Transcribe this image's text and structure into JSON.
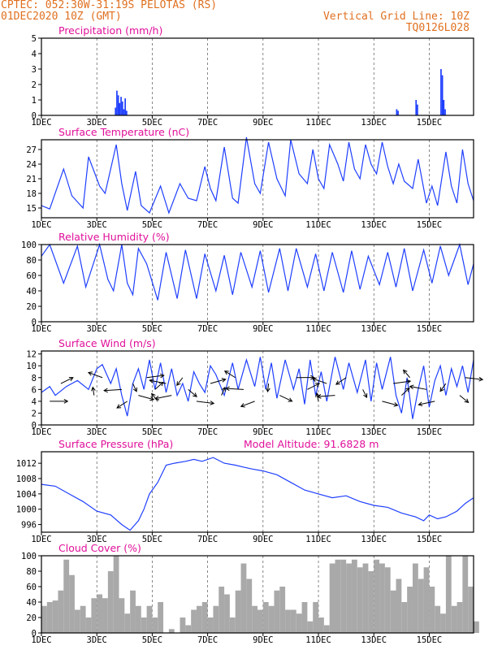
{
  "header": {
    "station": "CPTEC:  052:30W-31:19S  PELOTAS (RS)",
    "date": "01DEC2020 10Z (GMT)",
    "grid_note": "Vertical Grid Line: 10Z",
    "model": "TQ0126L028"
  },
  "colors": {
    "header": "#e07020",
    "title": "#e0109a",
    "series": "#1f3fff",
    "cloud": "#a9a9a9"
  },
  "chart_data": [
    {
      "type": "bar",
      "title": "Precipitation (mm/h)",
      "ylim": [
        0,
        5
      ],
      "yticks": [
        "0",
        "1",
        "2",
        "3",
        "4",
        "5"
      ],
      "xticklabels": [
        "1DEC",
        "3DEC",
        "5DEC",
        "7DEC",
        "9DEC",
        "11DEC",
        "13DEC",
        "15DEC"
      ],
      "x": [
        2.65,
        2.7,
        2.75,
        2.8,
        2.85,
        2.9,
        2.95,
        3.0,
        3.05,
        12.8,
        12.85,
        13.5,
        13.55,
        14.4,
        14.45,
        14.5,
        14.55
      ],
      "values": [
        0.5,
        1.6,
        1.3,
        0.8,
        1.2,
        0.9,
        0.4,
        1.1,
        0.3,
        0.4,
        0.3,
        1.0,
        0.7,
        3.0,
        2.6,
        1.0,
        0.4
      ]
    },
    {
      "type": "line",
      "title": "Surface Temperature (nC)",
      "ylim": [
        13,
        29
      ],
      "yticks": [
        "15",
        "18",
        "21",
        "24",
        "27"
      ],
      "xticklabels": [
        "1DEC",
        "3DEC",
        "5DEC",
        "7DEC",
        "9DEC",
        "11DEC",
        "13DEC",
        "15DEC"
      ],
      "x": [
        0,
        0.3,
        0.8,
        1.1,
        1.5,
        1.7,
        2.1,
        2.3,
        2.7,
        2.9,
        3.1,
        3.4,
        3.6,
        3.9,
        4.3,
        4.6,
        5.0,
        5.3,
        5.6,
        5.9,
        6.1,
        6.3,
        6.6,
        6.9,
        7.1,
        7.4,
        7.7,
        7.9,
        8.2,
        8.5,
        8.8,
        9.0,
        9.3,
        9.6,
        9.8,
        10.0,
        10.2,
        10.4,
        10.7,
        10.9,
        11.1,
        11.3,
        11.5,
        11.7,
        11.9,
        12.1,
        12.3,
        12.5,
        12.7,
        12.9,
        13.1,
        13.4,
        13.6,
        13.9,
        14.1,
        14.3,
        14.6,
        14.8,
        15.0,
        15.2,
        15.4,
        15.6
      ],
      "values": [
        15.5,
        14.8,
        23.0,
        17.5,
        15.0,
        25.5,
        19.5,
        18.0,
        28.0,
        20.0,
        14.5,
        22.5,
        15.5,
        14.0,
        19.5,
        14.0,
        20.0,
        17.0,
        16.5,
        23.5,
        19.0,
        16.5,
        27.5,
        17.0,
        16.0,
        29.5,
        20.0,
        18.0,
        28.5,
        21.0,
        17.5,
        29.0,
        22.0,
        20.0,
        27.0,
        21.0,
        19.0,
        28.0,
        24.0,
        20.5,
        28.5,
        23.0,
        21.0,
        28.0,
        24.0,
        22.0,
        28.5,
        23.5,
        20.0,
        24.0,
        20.5,
        19.0,
        25.0,
        16.0,
        19.5,
        15.5,
        26.5,
        19.5,
        16.0,
        27.0,
        20.0,
        16.5
      ]
    },
    {
      "type": "line",
      "title": "Relative Humidity (%)",
      "ylim": [
        0,
        100
      ],
      "yticks": [
        "0",
        "20",
        "40",
        "60",
        "80",
        "100"
      ],
      "xticklabels": [
        "1DEC",
        "3DEC",
        "5DEC",
        "7DEC",
        "9DEC",
        "11DEC",
        "13DEC",
        "15DEC"
      ],
      "x": [
        0,
        0.3,
        0.8,
        1.3,
        1.6,
        2.1,
        2.4,
        2.6,
        2.9,
        3.1,
        3.3,
        3.5,
        3.8,
        4.2,
        4.5,
        4.9,
        5.2,
        5.6,
        5.9,
        6.3,
        6.6,
        6.9,
        7.2,
        7.6,
        7.9,
        8.2,
        8.6,
        8.9,
        9.2,
        9.6,
        9.9,
        10.2,
        10.5,
        10.9,
        11.2,
        11.5,
        11.8,
        12.2,
        12.5,
        12.8,
        13.1,
        13.4,
        13.8,
        14.1,
        14.4,
        14.7,
        15.1,
        15.4,
        15.6
      ],
      "values": [
        85,
        100,
        50,
        98,
        45,
        100,
        55,
        40,
        100,
        50,
        35,
        95,
        75,
        28,
        90,
        30,
        93,
        30,
        88,
        40,
        86,
        35,
        90,
        45,
        92,
        38,
        95,
        40,
        95,
        45,
        88,
        40,
        90,
        38,
        92,
        42,
        85,
        48,
        90,
        45,
        95,
        40,
        93,
        50,
        98,
        60,
        100,
        48,
        75
      ]
    },
    {
      "type": "line",
      "title": "Surface Wind (m/s)",
      "ylim": [
        0,
        12.5
      ],
      "yticks": [
        "0",
        "2",
        "4",
        "6",
        "8",
        "10",
        "12"
      ],
      "xticklabels": [
        "1DEC",
        "3DEC",
        "5DEC",
        "7DEC",
        "9DEC",
        "11DEC",
        "13DEC",
        "15DEC"
      ],
      "x": [
        0,
        0.3,
        0.5,
        0.9,
        1.3,
        1.7,
        2.0,
        2.2,
        2.5,
        2.7,
        2.9,
        3.1,
        3.3,
        3.5,
        3.7,
        3.9,
        4.1,
        4.3,
        4.5,
        4.7,
        4.9,
        5.1,
        5.3,
        5.5,
        5.7,
        5.9,
        6.1,
        6.3,
        6.6,
        6.9,
        7.1,
        7.4,
        7.7,
        7.9,
        8.1,
        8.3,
        8.5,
        8.8,
        9.1,
        9.3,
        9.5,
        9.7,
        9.9,
        10.1,
        10.3,
        10.6,
        10.9,
        11.1,
        11.4,
        11.7,
        11.9,
        12.1,
        12.3,
        12.6,
        12.8,
        13.0,
        13.2,
        13.4,
        13.6,
        13.8,
        14.0,
        14.2,
        14.4,
        14.6,
        14.8,
        15.0,
        15.2,
        15.4,
        15.6
      ],
      "values": [
        5.5,
        6.5,
        5.0,
        6.5,
        7.5,
        6.0,
        9.5,
        10.2,
        7.0,
        9.5,
        5.0,
        1.5,
        7.0,
        9.5,
        6.0,
        11.0,
        6.0,
        10.5,
        5.5,
        9.5,
        5.0,
        7.0,
        4.0,
        9.0,
        7.0,
        5.5,
        10.0,
        8.5,
        5.0,
        10.5,
        6.0,
        11.0,
        6.5,
        11.5,
        6.0,
        10.5,
        4.5,
        11.0,
        6.0,
        9.5,
        3.5,
        11.0,
        5.0,
        9.0,
        4.0,
        11.5,
        6.0,
        10.5,
        5.5,
        11.0,
        4.0,
        10.5,
        6.0,
        11.5,
        5.0,
        2.0,
        8.0,
        1.0,
        6.0,
        10.0,
        3.0,
        7.5,
        10.0,
        5.0,
        9.5,
        6.5,
        10.0,
        5.5,
        11.0
      ],
      "arrows_x": [
        0.3,
        0.7,
        1.9,
        2.2,
        2.9,
        3.1,
        3.3,
        3.5,
        3.8,
        4.1,
        4.2,
        4.5,
        4.7,
        5.1,
        5.3,
        5.6,
        6.1,
        6.5,
        7.0,
        7.3,
        7.7,
        8.2,
        8.6,
        9.2,
        9.6,
        10.0,
        10.3,
        10.6,
        11.0,
        11.6,
        12.3,
        12.7,
        13.0,
        13.3,
        13.9,
        14.2,
        14.6,
        15.1,
        15.3
      ]
    },
    {
      "type": "line",
      "title": "Surface Pressure (hPa)",
      "annotation": "Model Altitude: 91.6828 m",
      "ylim": [
        994,
        1015
      ],
      "yticks": [
        "996",
        "1000",
        "1004",
        "1008",
        "1012"
      ],
      "xticklabels": [
        "1DEC",
        "3DEC",
        "5DEC",
        "7DEC",
        "9DEC",
        "11DEC",
        "13DEC",
        "15DEC"
      ],
      "x": [
        0,
        0.5,
        1.0,
        1.5,
        2.0,
        2.5,
        2.9,
        3.2,
        3.5,
        3.7,
        3.9,
        4.2,
        4.5,
        4.8,
        5.2,
        5.5,
        5.8,
        6.2,
        6.6,
        7.0,
        7.3,
        7.6,
        8.0,
        8.5,
        9.0,
        9.5,
        10.0,
        10.5,
        11.0,
        11.5,
        12.0,
        12.5,
        13.0,
        13.5,
        13.8,
        14.0,
        14.3,
        14.6,
        15.0,
        15.3,
        15.6
      ],
      "values": [
        1006.5,
        1006.0,
        1004.0,
        1002.0,
        999.5,
        998.5,
        996.0,
        994.5,
        997.0,
        1000.0,
        1004.0,
        1007.0,
        1011.5,
        1012.0,
        1012.5,
        1013.0,
        1012.5,
        1013.5,
        1012.0,
        1011.5,
        1011.0,
        1010.5,
        1010.0,
        1009.0,
        1007.0,
        1005.0,
        1004.0,
        1003.0,
        1003.5,
        1002.0,
        1001.0,
        1000.5,
        999.0,
        998.0,
        997.0,
        998.5,
        997.5,
        998.0,
        999.5,
        1001.5,
        1003.0
      ]
    },
    {
      "type": "bar",
      "title": "Cloud Cover (%)",
      "ylim": [
        0,
        100
      ],
      "yticks": [
        "0",
        "20",
        "40",
        "60",
        "80",
        "100"
      ],
      "xticklabels": [
        "1DEC",
        "3DEC",
        "5DEC",
        "7DEC",
        "9DEC",
        "11DEC",
        "13DEC",
        "15DEC"
      ],
      "x": [
        0.0,
        0.2,
        0.4,
        0.6,
        0.8,
        1.0,
        1.2,
        1.4,
        1.6,
        1.8,
        2.0,
        2.2,
        2.4,
        2.6,
        2.8,
        3.0,
        3.2,
        3.4,
        3.6,
        3.8,
        4.0,
        4.2,
        4.4,
        4.6,
        4.8,
        5.0,
        5.2,
        5.4,
        5.6,
        5.8,
        6.0,
        6.2,
        6.4,
        6.6,
        6.8,
        7.0,
        7.2,
        7.4,
        7.6,
        7.8,
        8.0,
        8.2,
        8.4,
        8.6,
        8.8,
        9.0,
        9.2,
        9.4,
        9.6,
        9.8,
        10.0,
        10.2,
        10.4,
        10.6,
        10.8,
        11.0,
        11.2,
        11.4,
        11.6,
        11.8,
        12.0,
        12.2,
        12.4,
        12.6,
        12.8,
        13.0,
        13.2,
        13.4,
        13.6,
        13.8,
        14.0,
        14.2,
        14.4,
        14.6,
        14.8,
        15.0,
        15.2,
        15.4,
        15.6
      ],
      "values": [
        35,
        40,
        42,
        55,
        95,
        75,
        30,
        35,
        20,
        45,
        50,
        45,
        80,
        100,
        45,
        25,
        55,
        35,
        20,
        35,
        20,
        40,
        0,
        5,
        0,
        20,
        10,
        30,
        35,
        40,
        20,
        35,
        60,
        50,
        20,
        55,
        90,
        70,
        35,
        30,
        40,
        35,
        55,
        60,
        30,
        30,
        25,
        40,
        15,
        40,
        20,
        10,
        90,
        95,
        95,
        90,
        95,
        85,
        90,
        80,
        95,
        90,
        85,
        55,
        70,
        40,
        60,
        90,
        70,
        85,
        60,
        35,
        25,
        100,
        35,
        40,
        100,
        60,
        15
      ]
    }
  ]
}
